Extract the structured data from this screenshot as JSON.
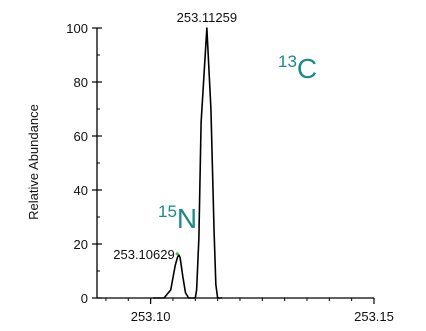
{
  "chart_data": {
    "type": "line",
    "title": "",
    "xlabel": "",
    "ylabel": "Relative Abundance",
    "xlim": [
      253.088,
      253.15
    ],
    "ylim": [
      0,
      100
    ],
    "x_ticks": [
      253.1,
      253.15
    ],
    "x_tick_labels": [
      "253.10",
      "253.15"
    ],
    "x_minor_step": 0.005,
    "y_ticks": [
      0,
      20,
      40,
      60,
      80,
      100
    ],
    "y_tick_labels": [
      "0",
      "20",
      "40",
      "60",
      "80",
      "100"
    ],
    "y_minor_step": 10,
    "grid": false,
    "series": [
      {
        "color": "#000000",
        "x": [
          253.1005,
          253.103,
          253.1045,
          253.1055,
          253.106,
          253.10629,
          253.1066,
          253.1072,
          253.1078,
          253.1085,
          253.11,
          253.1103,
          253.1108,
          253.1113,
          253.11259,
          253.1135,
          253.1142,
          253.1146,
          253.115,
          253.116
        ],
        "values": [
          0,
          0,
          3,
          12,
          15,
          16,
          15,
          8,
          2,
          0,
          0,
          3,
          22,
          65,
          100,
          70,
          25,
          5,
          0,
          0
        ]
      }
    ],
    "peak_labels": [
      {
        "text": "253.11259",
        "x": 253.11259,
        "y": 100
      },
      {
        "text": "253.10629",
        "x": 253.10629,
        "y": 16
      }
    ],
    "annotations": [
      {
        "mass_number": "13",
        "element": "C",
        "color": "#1b8a8a"
      },
      {
        "mass_number": "15",
        "element": "N",
        "color": "#1b8a8a"
      }
    ]
  }
}
